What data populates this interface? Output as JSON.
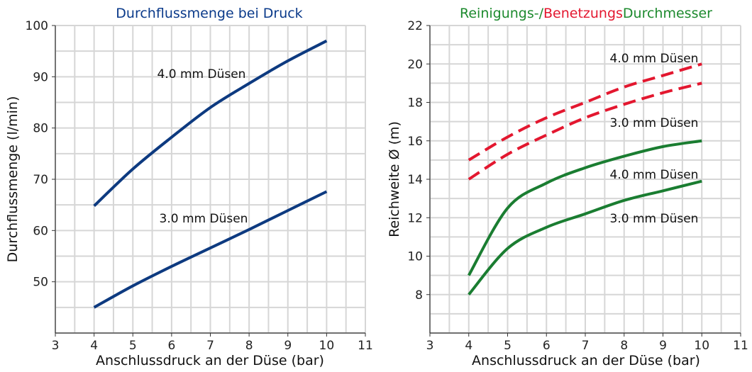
{
  "chart_data": [
    {
      "type": "line",
      "title": "Durchflussmenge bei Druck",
      "title_color": "#0a3a8a",
      "xlabel": "Anschlussdruck an der Düse (bar)",
      "ylabel": "Durchflussmenge (l/min)",
      "xlim": [
        3,
        11
      ],
      "ylim": [
        40,
        100
      ],
      "xticks": [
        3,
        4,
        5,
        6,
        7,
        8,
        9,
        10,
        11
      ],
      "yticks": [
        50,
        60,
        70,
        80,
        90,
        100
      ],
      "grid": true,
      "grid_color": "#d6d6d6",
      "x": [
        4,
        5,
        6,
        7,
        8,
        9,
        10
      ],
      "series": [
        {
          "name": "4.0 mm Düsen",
          "color": "#0d3a80",
          "dash": "solid",
          "values": [
            64.8,
            72,
            78.2,
            84,
            88.7,
            93.1,
            97
          ]
        },
        {
          "name": "3.0 mm Düsen",
          "color": "#0d3a80",
          "dash": "solid",
          "values": [
            45,
            49.2,
            53,
            56.6,
            60.2,
            63.9,
            67.6
          ]
        }
      ]
    },
    {
      "type": "line",
      "title_parts": [
        {
          "text": "Reinigungs-/",
          "color": "#1d8a2e"
        },
        {
          "text": "Benetzungs",
          "color": "#e3172f"
        },
        {
          "text": "Durchmesser",
          "color": "#1d8a2e"
        }
      ],
      "xlabel": "Anschlussdruck an der Düse (bar)",
      "ylabel": "Reichweite Ø (m)",
      "xlim": [
        3,
        11
      ],
      "ylim": [
        6,
        22
      ],
      "xticks": [
        3,
        4,
        5,
        6,
        7,
        8,
        9,
        10,
        11
      ],
      "yticks": [
        8,
        10,
        12,
        14,
        16,
        18,
        20,
        22
      ],
      "grid": true,
      "grid_color": "#d6d6d6",
      "x": [
        4,
        5,
        6,
        7,
        8,
        9,
        10
      ],
      "series": [
        {
          "name": "4.0 mm Düsen",
          "color": "#e3172f",
          "dash": "dashed",
          "values": [
            15,
            16.2,
            17.2,
            18,
            18.8,
            19.4,
            20
          ]
        },
        {
          "name": "3.0 mm Düsen",
          "color": "#e3172f",
          "dash": "dashed",
          "values": [
            14,
            15.3,
            16.3,
            17.2,
            17.9,
            18.5,
            19
          ]
        },
        {
          "name": "4.0 mm Düsen",
          "color": "#1a7d31",
          "dash": "solid",
          "values": [
            9,
            12.5,
            13.8,
            14.6,
            15.2,
            15.7,
            16
          ]
        },
        {
          "name": "3.0 mm Düsen",
          "color": "#1a7d31",
          "dash": "solid",
          "values": [
            8,
            10.4,
            11.5,
            12.2,
            12.9,
            13.4,
            13.9
          ]
        }
      ]
    }
  ]
}
